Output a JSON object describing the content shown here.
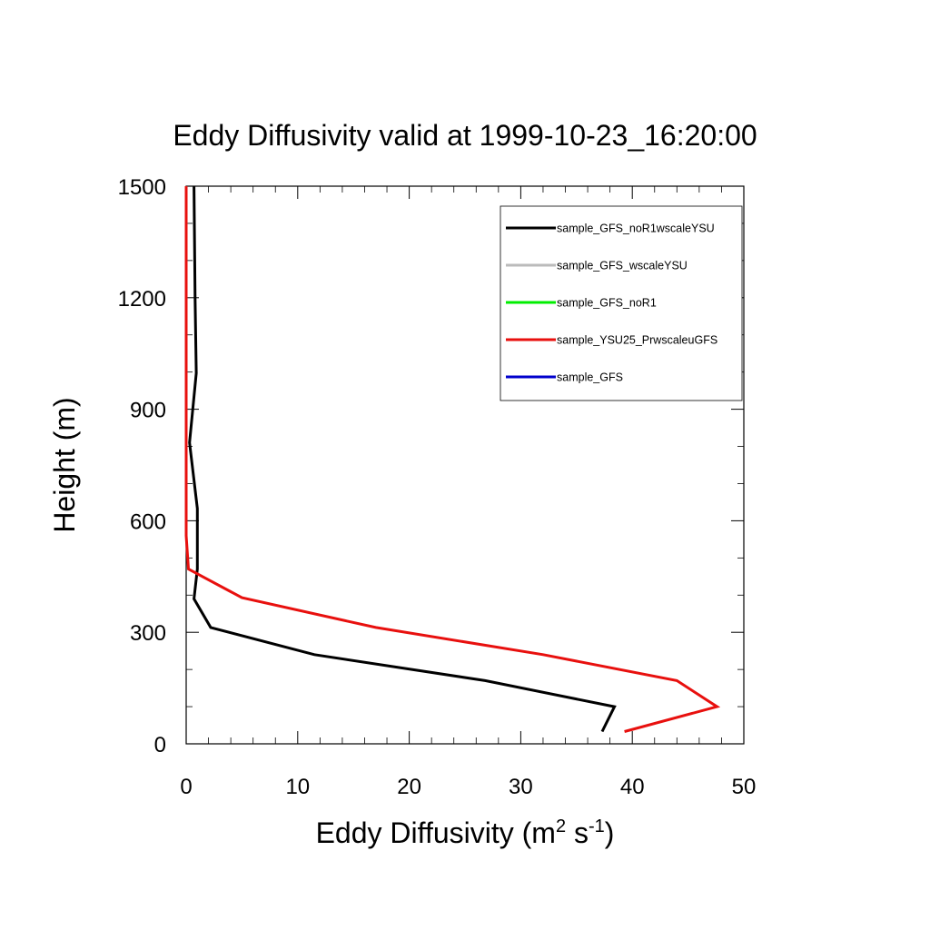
{
  "chart_data": {
    "type": "line",
    "title": "Eddy Diffusivity valid at 1999-10-23_16:20:00",
    "xlabel": {
      "prefix": "Eddy Diffusivity (m",
      "sup1": "2",
      "middle": " s",
      "sup2": "-1",
      "suffix": ")"
    },
    "ylabel": "Height (m)",
    "xlim": [
      0,
      50
    ],
    "ylim": [
      0,
      1500
    ],
    "x_ticks": [
      0,
      10,
      20,
      30,
      40,
      50
    ],
    "x_tick_labels": [
      "0",
      "10",
      "20",
      "30",
      "40",
      "50"
    ],
    "y_ticks": [
      0,
      300,
      600,
      900,
      1200,
      1500
    ],
    "y_tick_labels": [
      "0",
      "300",
      "600",
      "900",
      "1200",
      "1500"
    ],
    "grid": false,
    "legend_position": "top-right",
    "series": [
      {
        "name": "sample_GFS_noR1wscaleYSU",
        "color": "#000000",
        "points": [
          [
            37.3,
            33
          ],
          [
            38.4,
            100
          ],
          [
            26.8,
            170
          ],
          [
            11.5,
            240
          ],
          [
            2.2,
            313
          ],
          [
            0.7,
            390
          ],
          [
            1.0,
            470
          ],
          [
            1.0,
            633
          ],
          [
            0.3,
            810
          ],
          [
            0.9,
            997
          ],
          [
            0.8,
            1200
          ],
          [
            0.7,
            1500
          ]
        ]
      },
      {
        "name": "sample_GFS_wscaleYSU",
        "color": "#bbbbbb",
        "points": []
      },
      {
        "name": "sample_GFS_noR1",
        "color": "#00ee00",
        "points": []
      },
      {
        "name": "sample_YSU25_PrwscaleuGFS",
        "color": "#e8100e",
        "points": [
          [
            39.3,
            33
          ],
          [
            47.6,
            100
          ],
          [
            44.0,
            170
          ],
          [
            32.0,
            240
          ],
          [
            17.0,
            313
          ],
          [
            5.0,
            393
          ],
          [
            0.2,
            470
          ],
          [
            0.0,
            560
          ],
          [
            0.0,
            800
          ],
          [
            0.0,
            1000
          ],
          [
            0.0,
            1200
          ],
          [
            0.0,
            1500
          ]
        ]
      },
      {
        "name": "sample_GFS",
        "color": "#0000cc",
        "points": []
      }
    ]
  }
}
